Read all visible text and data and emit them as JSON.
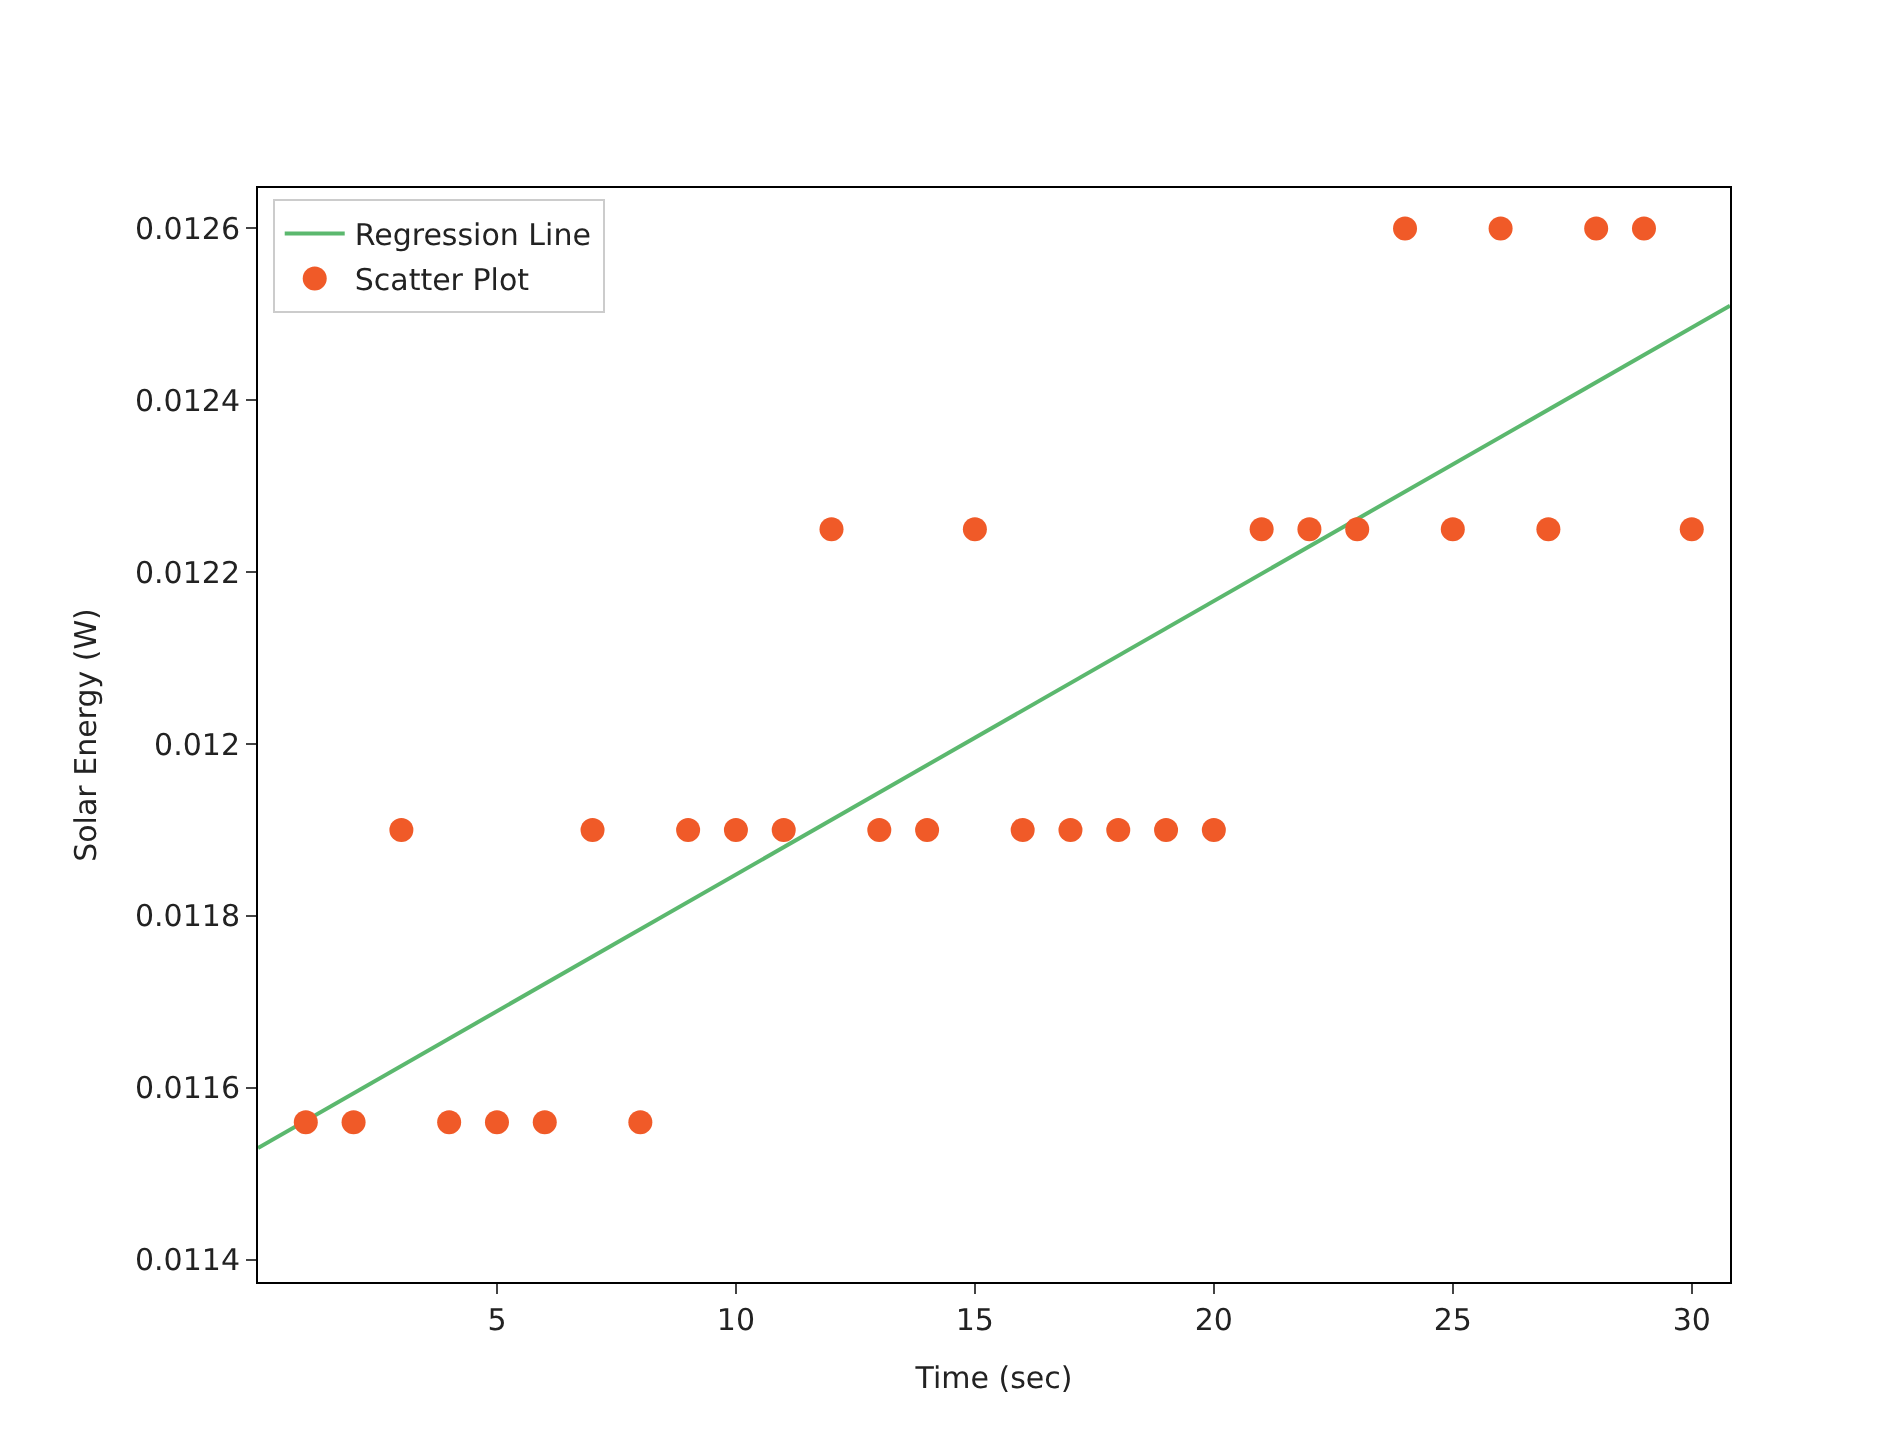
{
  "chart_data": {
    "type": "scatter",
    "xlabel": "Time (sec)",
    "ylabel": "Solar Energy (W)",
    "xlim": [
      0.0,
      30.8
    ],
    "xticks": [
      5,
      10,
      15,
      20,
      25,
      30
    ],
    "ylim": [
      0.011374,
      0.012647
    ],
    "yticks": [
      0.0114,
      0.0116,
      0.0118,
      0.012,
      0.0122,
      0.0124,
      0.0126
    ],
    "legend": "top left",
    "series": [
      {
        "name": "Regression Line",
        "type": "line",
        "color": "#5bb86e",
        "x": [
          0.0,
          30.8
        ],
        "values": [
          0.01153,
          0.01251
        ],
        "marker": "none"
      },
      {
        "name": "Scatter Plot",
        "color": "#f05a28",
        "marker": "circle",
        "x": [
          1,
          2,
          3,
          4,
          5,
          6,
          7,
          8,
          9,
          10,
          11,
          12,
          13,
          14,
          15,
          16,
          17,
          18,
          19,
          20,
          21,
          22,
          23,
          24,
          25,
          26,
          27,
          28,
          29,
          30
        ],
        "values": [
          0.01156,
          0.01156,
          0.0119,
          0.01156,
          0.01156,
          0.01156,
          0.0119,
          0.01156,
          0.0119,
          0.0119,
          0.0119,
          0.01225,
          0.0119,
          0.0119,
          0.01225,
          0.0119,
          0.0119,
          0.0119,
          0.0119,
          0.0119,
          0.01225,
          0.01225,
          0.01225,
          0.0126,
          0.01225,
          0.0126,
          0.01225,
          0.0126,
          0.0126,
          0.01225
        ]
      }
    ]
  }
}
